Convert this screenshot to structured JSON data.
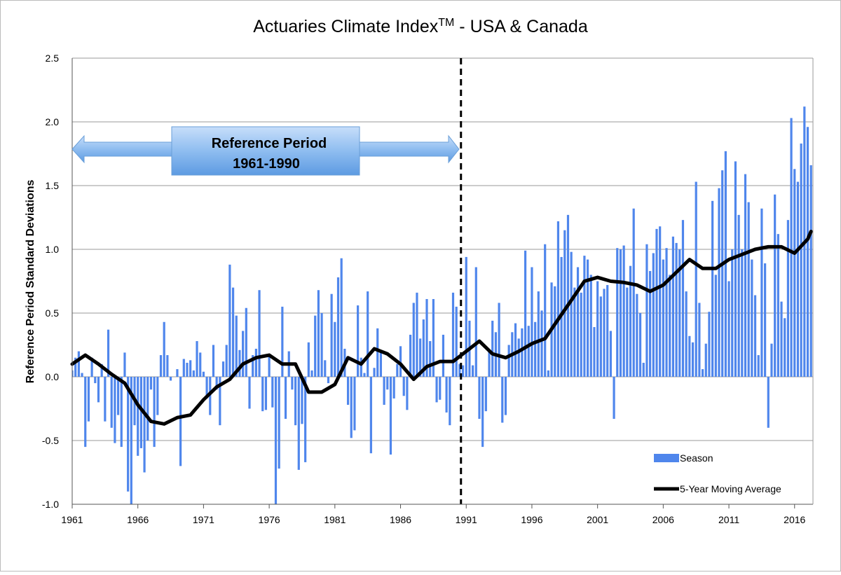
{
  "chart_data": {
    "type": "bar",
    "title": "Actuaries Climate Index",
    "title_superscript": "TM",
    "title_suffix": " - USA & Canada",
    "y_label": "Reference Period Standard Deviations",
    "annotation": {
      "line1": "Reference Period",
      "line2": "1961-1990"
    },
    "reference_line_x": 1990.6,
    "xlim": [
      1961,
      2017.4
    ],
    "xticks": [
      1961,
      1966,
      1971,
      1976,
      1981,
      1986,
      1991,
      1996,
      2001,
      2006,
      2011,
      2016
    ],
    "ylim": [
      -1.0,
      2.5
    ],
    "yticks": [
      {
        "value": -1.0,
        "label": "-1.0"
      },
      -0.5,
      {
        "value": 0.0,
        "label": "0.0"
      },
      0.5,
      {
        "value": 1.0,
        "label": "1.0"
      },
      1.5,
      {
        "value": 2.0,
        "label": "2.0"
      },
      2.5
    ],
    "grid": true,
    "legend": "lower right",
    "series": [
      {
        "name": "Season",
        "type": "bar",
        "color": "#4f86ec",
        "x": [
          1961,
          1961.25,
          1961.5,
          1961.75,
          1962,
          1962.25,
          1962.5,
          1962.75,
          1963,
          1963.25,
          1963.5,
          1963.75,
          1964,
          1964.25,
          1964.5,
          1964.75,
          1965,
          1965.25,
          1965.5,
          1965.75,
          1966,
          1966.25,
          1966.5,
          1966.75,
          1967,
          1967.25,
          1967.5,
          1967.75,
          1968,
          1968.25,
          1968.5,
          1968.75,
          1969,
          1969.25,
          1969.5,
          1969.75,
          1970,
          1970.25,
          1970.5,
          1970.75,
          1971,
          1971.25,
          1971.5,
          1971.75,
          1972,
          1972.25,
          1972.5,
          1972.75,
          1973,
          1973.25,
          1973.5,
          1973.75,
          1974,
          1974.25,
          1974.5,
          1974.75,
          1975,
          1975.25,
          1975.5,
          1975.75,
          1976,
          1976.25,
          1976.5,
          1976.75,
          1977,
          1977.25,
          1977.5,
          1977.75,
          1978,
          1978.25,
          1978.5,
          1978.75,
          1979,
          1979.25,
          1979.5,
          1979.75,
          1980,
          1980.25,
          1980.5,
          1980.75,
          1981,
          1981.25,
          1981.5,
          1981.75,
          1982,
          1982.25,
          1982.5,
          1982.75,
          1983,
          1983.25,
          1983.5,
          1983.75,
          1984,
          1984.25,
          1984.5,
          1984.75,
          1985,
          1985.25,
          1985.5,
          1985.75,
          1986,
          1986.25,
          1986.5,
          1986.75,
          1987,
          1987.25,
          1987.5,
          1987.75,
          1988,
          1988.25,
          1988.5,
          1988.75,
          1989,
          1989.25,
          1989.5,
          1989.75,
          1990,
          1990.25,
          1990.5,
          1990.75,
          1991,
          1991.25,
          1991.5,
          1991.75,
          1992,
          1992.25,
          1992.5,
          1992.75,
          1993,
          1993.25,
          1993.5,
          1993.75,
          1994,
          1994.25,
          1994.5,
          1994.75,
          1995,
          1995.25,
          1995.5,
          1995.75,
          1996,
          1996.25,
          1996.5,
          1996.75,
          1997,
          1997.25,
          1997.5,
          1997.75,
          1998,
          1998.25,
          1998.5,
          1998.75,
          1999,
          1999.25,
          1999.5,
          1999.75,
          2000,
          2000.25,
          2000.5,
          2000.75,
          2001,
          2001.25,
          2001.5,
          2001.75,
          2002,
          2002.25,
          2002.5,
          2002.75,
          2003,
          2003.25,
          2003.5,
          2003.75,
          2004,
          2004.25,
          2004.5,
          2004.75,
          2005,
          2005.25,
          2005.5,
          2005.75,
          2006,
          2006.25,
          2006.5,
          2006.75,
          2007,
          2007.25,
          2007.5,
          2007.75,
          2008,
          2008.25,
          2008.5,
          2008.75,
          2009,
          2009.25,
          2009.5,
          2009.75,
          2010,
          2010.25,
          2010.5,
          2010.75,
          2011,
          2011.25,
          2011.5,
          2011.75,
          2012,
          2012.25,
          2012.5,
          2012.75,
          2013,
          2013.25,
          2013.5,
          2013.75,
          2014,
          2014.25,
          2014.5,
          2014.75,
          2015,
          2015.25,
          2015.5,
          2015.75,
          2016,
          2016.25,
          2016.5,
          2016.75,
          2017,
          2017.25
        ],
        "values": [
          0.05,
          0.15,
          0.2,
          0.03,
          -0.55,
          -0.35,
          0.15,
          -0.05,
          -0.2,
          0.1,
          -0.35,
          0.37,
          -0.4,
          -0.52,
          -0.3,
          -0.55,
          0.19,
          -0.9,
          -1.0,
          -0.38,
          -0.62,
          -0.56,
          -0.75,
          -0.5,
          -0.1,
          -0.55,
          -0.3,
          0.17,
          0.43,
          0.17,
          -0.03,
          0.0,
          0.06,
          -0.7,
          0.14,
          0.11,
          0.13,
          0.05,
          0.28,
          0.19,
          0.04,
          -0.17,
          -0.3,
          0.25,
          -0.1,
          -0.38,
          0.12,
          0.25,
          0.88,
          0.7,
          0.48,
          0.21,
          0.36,
          0.54,
          -0.25,
          0.17,
          0.22,
          0.68,
          -0.27,
          -0.26,
          0.18,
          -0.24,
          -1.0,
          -0.72,
          0.55,
          -0.33,
          0.2,
          -0.1,
          -0.38,
          -0.73,
          -0.37,
          -0.67,
          0.27,
          0.05,
          0.48,
          0.68,
          0.5,
          0.13,
          -0.05,
          0.65,
          0.43,
          0.78,
          0.93,
          0.22,
          -0.22,
          -0.48,
          -0.42,
          0.56,
          0.15,
          0.03,
          0.67,
          -0.6,
          0.07,
          0.38,
          0.2,
          -0.22,
          -0.1,
          -0.61,
          -0.17,
          0.1,
          0.24,
          -0.15,
          -0.26,
          0.33,
          0.58,
          0.66,
          0.3,
          0.45,
          0.61,
          0.28,
          0.61,
          -0.2,
          -0.18,
          0.33,
          -0.28,
          -0.38,
          0.66,
          0.55,
          0.1,
          0.09,
          0.94,
          0.44,
          0.09,
          0.86,
          -0.33,
          -0.55,
          -0.27,
          0.2,
          0.44,
          0.35,
          0.58,
          -0.36,
          -0.3,
          0.25,
          0.35,
          0.42,
          0.3,
          0.38,
          0.99,
          0.4,
          0.86,
          0.43,
          0.67,
          0.52,
          1.04,
          0.05,
          0.74,
          0.71,
          1.22,
          0.94,
          1.15,
          1.27,
          0.98,
          0.7,
          0.86,
          0.66,
          0.95,
          0.92,
          0.8,
          0.39,
          0.75,
          0.63,
          0.69,
          0.72,
          0.36,
          -0.33,
          1.01,
          1.0,
          1.03,
          0.7,
          0.87,
          1.32,
          0.65,
          0.5,
          0.11,
          1.04,
          0.83,
          0.97,
          1.16,
          1.18,
          0.92,
          1.01,
          0.8,
          1.1,
          1.05,
          1.0,
          1.23,
          0.67,
          0.32,
          0.27,
          1.53,
          0.58,
          0.06,
          0.26,
          0.51,
          1.38,
          0.8,
          1.48,
          1.62,
          1.77,
          0.75,
          1.0,
          1.69,
          1.27,
          1.0,
          1.59,
          1.37,
          0.92,
          0.64,
          0.17,
          1.32,
          0.89,
          -0.4,
          0.26,
          1.43,
          1.12,
          0.59,
          0.46,
          1.23,
          2.03,
          1.63,
          1.53,
          1.83,
          2.12,
          1.96,
          1.66
        ]
      },
      {
        "name": "5-Year Moving Average",
        "type": "line",
        "color": "#000000",
        "x": [
          1961,
          1962,
          1963,
          1964,
          1965,
          1966,
          1967,
          1968,
          1969,
          1970,
          1971,
          1972,
          1973,
          1974,
          1975,
          1976,
          1977,
          1978,
          1979,
          1980,
          1981,
          1982,
          1983,
          1984,
          1985,
          1986,
          1987,
          1988,
          1989,
          1990,
          1991,
          1992,
          1993,
          1994,
          1995,
          1996,
          1997,
          1998,
          1999,
          2000,
          2001,
          2002,
          2003,
          2004,
          2005,
          2006,
          2007,
          2008,
          2009,
          2010,
          2011,
          2012,
          2013,
          2014,
          2015,
          2016,
          2017,
          2017.25
        ],
        "values": [
          0.1,
          0.17,
          0.1,
          0.02,
          -0.05,
          -0.22,
          -0.35,
          -0.37,
          -0.32,
          -0.3,
          -0.18,
          -0.08,
          -0.02,
          0.1,
          0.15,
          0.17,
          0.1,
          0.1,
          -0.12,
          -0.12,
          -0.06,
          0.15,
          0.1,
          0.22,
          0.18,
          0.1,
          -0.02,
          0.08,
          0.12,
          0.12,
          0.2,
          0.28,
          0.18,
          0.15,
          0.2,
          0.26,
          0.3,
          0.45,
          0.6,
          0.75,
          0.78,
          0.75,
          0.74,
          0.72,
          0.67,
          0.72,
          0.82,
          0.92,
          0.85,
          0.85,
          0.92,
          0.96,
          1.0,
          1.02,
          1.02,
          0.97,
          1.08,
          1.14
        ]
      }
    ]
  }
}
